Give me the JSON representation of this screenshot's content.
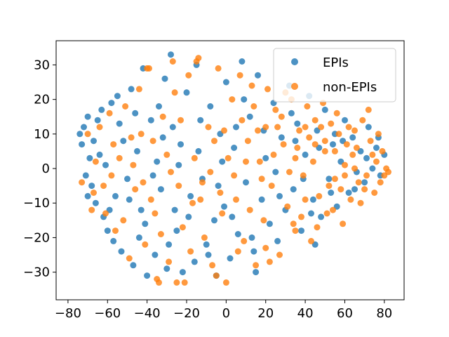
{
  "chart_data": {
    "type": "scatter",
    "title": "",
    "xlabel": "",
    "ylabel": "",
    "xlim": [
      -86,
      90
    ],
    "ylim": [
      -38,
      37
    ],
    "xticks": [
      -80,
      -60,
      -40,
      -20,
      0,
      20,
      40,
      60,
      80
    ],
    "yticks": [
      -30,
      -20,
      -10,
      0,
      10,
      20,
      30
    ],
    "xtick_labels": [
      "−80",
      "−60",
      "−40",
      "−20",
      "0",
      "20",
      "40",
      "60",
      "80"
    ],
    "ytick_labels": [
      "−30",
      "−20",
      "−10",
      "0",
      "10",
      "20",
      "30"
    ],
    "grid": false,
    "legend_position": "top-right",
    "series": [
      {
        "name": "EPIs",
        "color": "#1f77b4",
        "points": [
          [
            -74,
            10
          ],
          [
            -72,
            12
          ],
          [
            -70,
            15
          ],
          [
            -73,
            7
          ],
          [
            -69,
            3
          ],
          [
            -71,
            -2
          ],
          [
            -68,
            -5
          ],
          [
            -66,
            -10
          ],
          [
            -65,
            14
          ],
          [
            -63,
            17
          ],
          [
            -62,
            -14
          ],
          [
            -60,
            -18
          ],
          [
            -58,
            19
          ],
          [
            -57,
            -21
          ],
          [
            -55,
            21
          ],
          [
            -53,
            -24
          ],
          [
            -52,
            8
          ],
          [
            -50,
            -3
          ],
          [
            -48,
            23
          ],
          [
            -47,
            -28
          ],
          [
            -45,
            5
          ],
          [
            -43,
            -12
          ],
          [
            -42,
            29
          ],
          [
            -40,
            -31
          ],
          [
            -38,
            14
          ],
          [
            -36,
            -25
          ],
          [
            -35,
            2
          ],
          [
            -33,
            -6
          ],
          [
            -31,
            26
          ],
          [
            -30,
            -29
          ],
          [
            -28,
            33
          ],
          [
            -27,
            12
          ],
          [
            -25,
            -18
          ],
          [
            -23,
            7
          ],
          [
            -22,
            -30
          ],
          [
            -20,
            22
          ],
          [
            -18,
            -8
          ],
          [
            -16,
            -27
          ],
          [
            -15,
            30
          ],
          [
            -12,
            -3
          ],
          [
            -10,
            -22
          ],
          [
            -8,
            18
          ],
          [
            -6,
            -15
          ],
          [
            -5,
            -31
          ],
          [
            -3,
            10
          ],
          [
            -1,
            -11
          ],
          [
            0,
            25
          ],
          [
            2,
            -26
          ],
          [
            4,
            6
          ],
          [
            6,
            -19
          ],
          [
            8,
            31
          ],
          [
            10,
            -4
          ],
          [
            12,
            15
          ],
          [
            14,
            -24
          ],
          [
            16,
            27
          ],
          [
            18,
            -9
          ],
          [
            20,
            3
          ],
          [
            22,
            -16
          ],
          [
            24,
            19
          ],
          [
            26,
            -21
          ],
          [
            28,
            9
          ],
          [
            30,
            -12
          ],
          [
            32,
            24
          ],
          [
            34,
            -6
          ],
          [
            36,
            13
          ],
          [
            38,
            -18
          ],
          [
            40,
            4
          ],
          [
            42,
            21
          ],
          [
            44,
            -9
          ],
          [
            46,
            11
          ],
          [
            48,
            -14
          ],
          [
            50,
            17
          ],
          [
            52,
            -3
          ],
          [
            54,
            7
          ],
          [
            56,
            -11
          ],
          [
            58,
            2
          ],
          [
            60,
            14
          ],
          [
            62,
            -7
          ],
          [
            64,
            9
          ],
          [
            66,
            -1
          ],
          [
            68,
            5
          ],
          [
            70,
            -4
          ],
          [
            72,
            12
          ],
          [
            74,
            0
          ],
          [
            76,
            6
          ],
          [
            78,
            -2
          ],
          [
            80,
            4
          ],
          [
            -64,
            4
          ],
          [
            -56,
            -8
          ],
          [
            -44,
            -20
          ],
          [
            -34,
            18
          ],
          [
            -26,
            -12
          ],
          [
            -14,
            5
          ],
          [
            -4,
            -5
          ],
          [
            5,
            12
          ],
          [
            15,
            -30
          ],
          [
            25,
            -1
          ],
          [
            35,
            8
          ],
          [
            45,
            -22
          ],
          [
            55,
            10
          ],
          [
            -67,
            8
          ],
          [
            -61,
            1
          ],
          [
            -59,
            -12
          ],
          [
            -54,
            13
          ],
          [
            -49,
            -9
          ],
          [
            -46,
            16
          ],
          [
            -41,
            -16
          ],
          [
            -37,
            -2
          ],
          [
            -32,
            9
          ],
          [
            -29,
            -22
          ],
          [
            -24,
            1
          ],
          [
            -19,
            -14
          ],
          [
            -13,
            14
          ],
          [
            -9,
            -25
          ],
          [
            -2,
            2
          ],
          [
            3,
            -14
          ],
          [
            9,
            20
          ],
          [
            13,
            -20
          ],
          [
            19,
            11
          ],
          [
            27,
            -8
          ],
          [
            33,
            16
          ],
          [
            39,
            -3
          ],
          [
            43,
            -13
          ],
          [
            47,
            6
          ],
          [
            53,
            -7
          ],
          [
            59,
            8
          ],
          [
            65,
            -6
          ],
          [
            71,
            3
          ],
          [
            77,
            9
          ],
          [
            -70,
            -8
          ]
        ]
      },
      {
        "name": "non-EPIs",
        "color": "#ff7f0e",
        "points": [
          [
            -73,
            -4
          ],
          [
            -70,
            10
          ],
          [
            -67,
            -7
          ],
          [
            -64,
            12
          ],
          [
            -61,
            -13
          ],
          [
            -59,
            16
          ],
          [
            -56,
            -18
          ],
          [
            -54,
            3
          ],
          [
            -51,
            18
          ],
          [
            -49,
            -26
          ],
          [
            -46,
            -6
          ],
          [
            -44,
            23
          ],
          [
            -41,
            -22
          ],
          [
            -39,
            29
          ],
          [
            -37,
            8
          ],
          [
            -34,
            -33
          ],
          [
            -32,
            15
          ],
          [
            -29,
            -27
          ],
          [
            -27,
            31
          ],
          [
            -24,
            -5
          ],
          [
            -21,
            -33
          ],
          [
            -19,
            27
          ],
          [
            -17,
            -10
          ],
          [
            -14,
            32
          ],
          [
            -11,
            -20
          ],
          [
            -9,
            12
          ],
          [
            -7,
            -28
          ],
          [
            -4,
            29
          ],
          [
            -2,
            -13
          ],
          [
            0,
            -33
          ],
          [
            3,
            20
          ],
          [
            5,
            -9
          ],
          [
            7,
            27
          ],
          [
            9,
            -21
          ],
          [
            11,
            8
          ],
          [
            13,
            24
          ],
          [
            15,
            -28
          ],
          [
            17,
            2
          ],
          [
            19,
            -15
          ],
          [
            21,
            23
          ],
          [
            23,
            -5
          ],
          [
            25,
            17
          ],
          [
            27,
            -25
          ],
          [
            29,
            7
          ],
          [
            31,
            -11
          ],
          [
            33,
            20
          ],
          [
            35,
            -18
          ],
          [
            37,
            11
          ],
          [
            39,
            -2
          ],
          [
            41,
            18
          ],
          [
            43,
            -21
          ],
          [
            45,
            14
          ],
          [
            47,
            -8
          ],
          [
            49,
            19
          ],
          [
            51,
            -13
          ],
          [
            53,
            13
          ],
          [
            55,
            -3
          ],
          [
            57,
            10
          ],
          [
            59,
            -16
          ],
          [
            61,
            7
          ],
          [
            63,
            -9
          ],
          [
            65,
            11
          ],
          [
            67,
            -4
          ],
          [
            69,
            14
          ],
          [
            71,
            -2
          ],
          [
            73,
            8
          ],
          [
            75,
            -7
          ],
          [
            77,
            10
          ],
          [
            79,
            5
          ],
          [
            81,
            0
          ],
          [
            82,
            -1
          ],
          [
            80,
            -2
          ],
          [
            -66,
            2
          ],
          [
            -58,
            -2
          ],
          [
            -48,
            9
          ],
          [
            -42,
            -4
          ],
          [
            -36,
            -13
          ],
          [
            -30,
            4
          ],
          [
            -26,
            22
          ],
          [
            -22,
            -17
          ],
          [
            -16,
            3
          ],
          [
            -12,
            -4
          ],
          [
            -6,
            8
          ],
          [
            -3,
            -7
          ],
          [
            1,
            3
          ],
          [
            4,
            -2
          ],
          [
            8,
            14
          ],
          [
            12,
            -12
          ],
          [
            16,
            11
          ],
          [
            20,
            -23
          ],
          [
            24,
            4
          ],
          [
            28,
            15
          ],
          [
            32,
            -1
          ],
          [
            36,
            6
          ],
          [
            40,
            -9
          ],
          [
            44,
            2
          ],
          [
            48,
            12
          ],
          [
            52,
            -5
          ],
          [
            56,
            16
          ],
          [
            60,
            1
          ],
          [
            64,
            4
          ],
          [
            68,
            -10
          ],
          [
            72,
            17
          ],
          [
            76,
            2
          ],
          [
            -68,
            -12
          ],
          [
            -62,
            -5
          ],
          [
            -57,
            7
          ],
          [
            -52,
            -15
          ],
          [
            -47,
            1
          ],
          [
            -43,
            10
          ],
          [
            -38,
            -9
          ],
          [
            -33,
            -19
          ],
          [
            -28,
            -1
          ],
          [
            -23,
            14
          ],
          [
            -18,
            -24
          ],
          [
            -13,
            -9
          ],
          [
            -8,
            -1
          ],
          [
            -1,
            11
          ],
          [
            6,
            -24
          ],
          [
            10,
            2
          ],
          [
            14,
            18
          ],
          [
            18,
            -3
          ],
          [
            22,
            -27
          ],
          [
            26,
            12
          ],
          [
            30,
            22
          ],
          [
            34,
            -16
          ],
          [
            38,
            -14
          ],
          [
            42,
            9
          ],
          [
            46,
            -17
          ],
          [
            50,
            5
          ],
          [
            54,
            -12
          ],
          [
            58,
            -6
          ],
          [
            62,
            12
          ],
          [
            66,
            6
          ],
          [
            70,
            -6
          ],
          [
            74,
            4
          ],
          [
            78,
            -4
          ],
          [
            -35,
            -32
          ],
          [
            -25,
            -33
          ],
          [
            -5,
            -31
          ],
          [
            -40,
            29
          ],
          [
            -15,
            31
          ],
          [
            20,
            12
          ],
          [
            40,
            12
          ],
          [
            45,
            7
          ],
          [
            35,
            3
          ],
          [
            50,
            8
          ],
          [
            55,
            5
          ],
          [
            60,
            -2
          ],
          [
            65,
            0
          ]
        ]
      }
    ]
  }
}
